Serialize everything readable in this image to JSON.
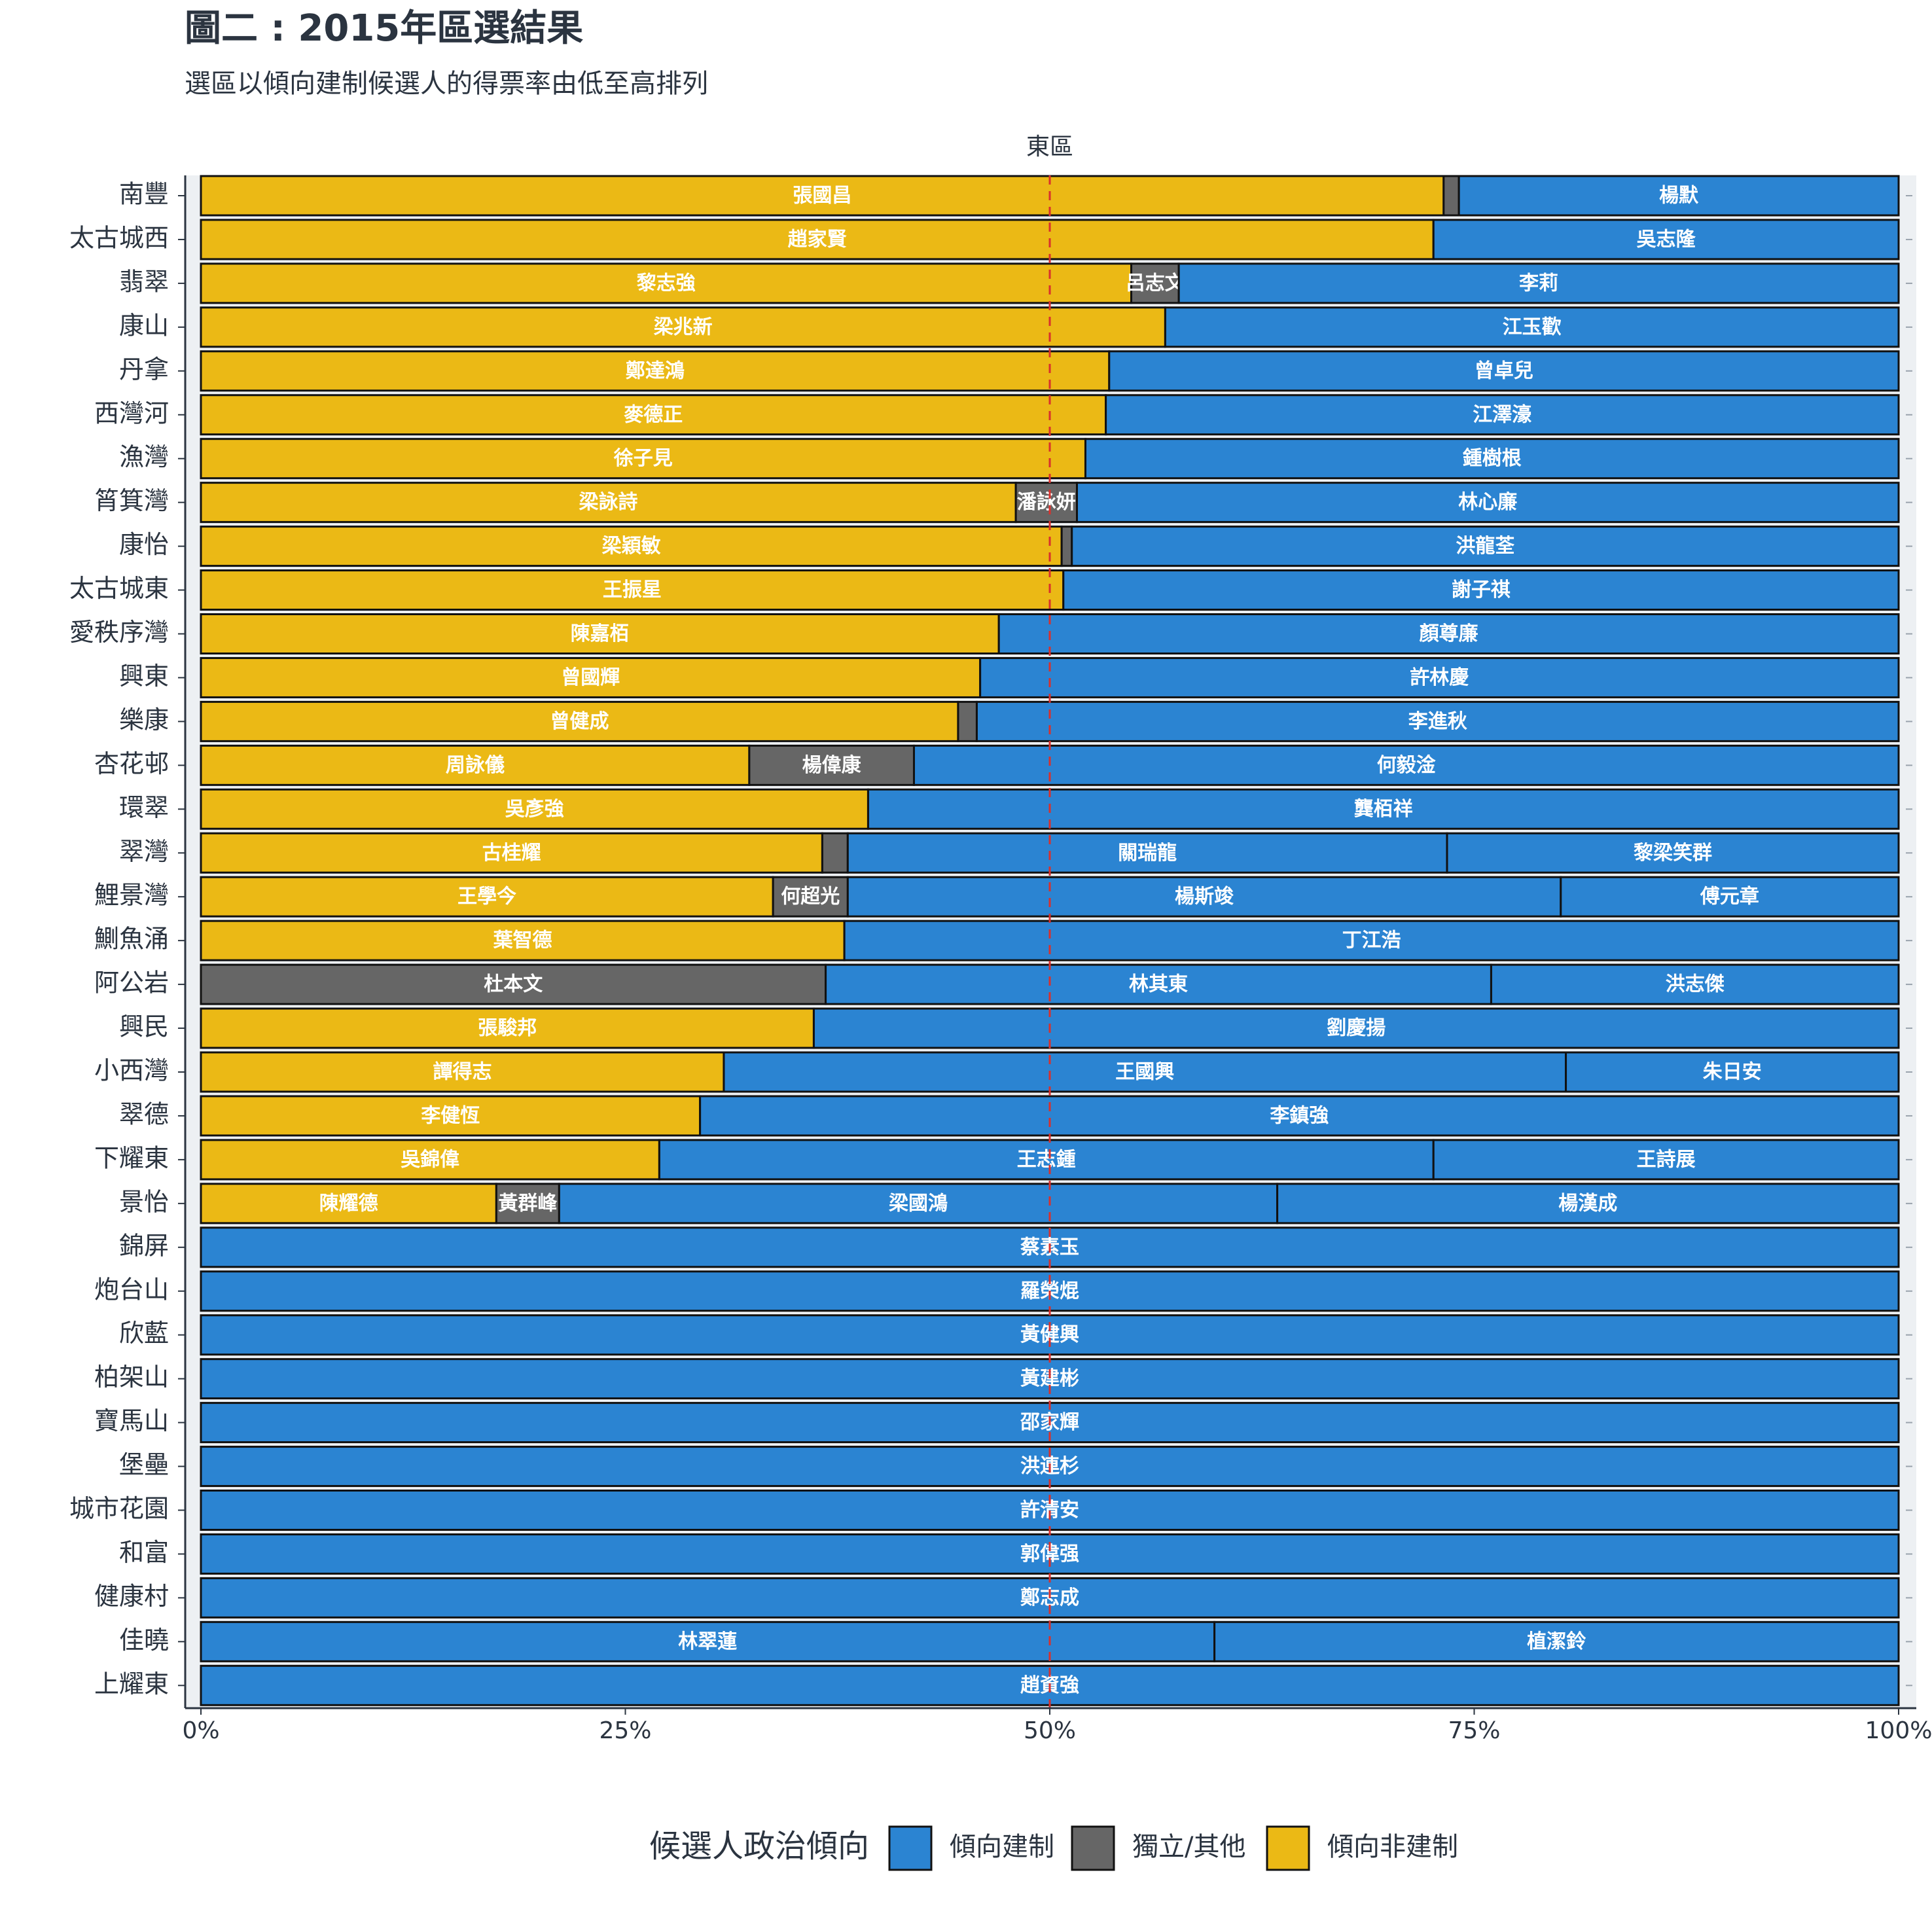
{
  "chart_data": {
    "type": "stacked-bar-horizontal",
    "title": "圖二 : 2015年區選結果",
    "subtitle": "選區以傾向建制候選人的得票率由低至高排列",
    "facet": "東區",
    "legend_title": "候選人政治傾向",
    "camps": [
      {
        "name": "傾向建制",
        "color": "#2b84d2"
      },
      {
        "name": "獨立/其他",
        "color": "#666666"
      },
      {
        "name": "傾向非建制",
        "color": "#ebb915"
      }
    ],
    "xlim": [
      0,
      100
    ],
    "xticks": [
      {
        "value": 0,
        "label": "0%"
      },
      {
        "value": 25,
        "label": "25%"
      },
      {
        "value": 50,
        "label": "50%"
      },
      {
        "value": 75,
        "label": "75%"
      },
      {
        "value": 100,
        "label": "100%"
      }
    ],
    "reference_line": 50,
    "rows": [
      {
        "district": "南豐",
        "segments": [
          {
            "candidate": "張國昌",
            "camp": 2,
            "value": 73.2
          },
          {
            "candidate": null,
            "camp": 1,
            "value": 0.9
          },
          {
            "candidate": "楊默",
            "camp": 0,
            "value": 25.9
          }
        ]
      },
      {
        "district": "太古城西",
        "segments": [
          {
            "candidate": "趙家賢",
            "camp": 2,
            "value": 72.6
          },
          {
            "candidate": "吳志隆",
            "camp": 0,
            "value": 27.4
          }
        ]
      },
      {
        "district": "翡翠",
        "segments": [
          {
            "candidate": "黎志強",
            "camp": 2,
            "value": 54.8
          },
          {
            "candidate": "呂志文",
            "camp": 1,
            "value": 2.8
          },
          {
            "candidate": "李莉",
            "camp": 0,
            "value": 42.4
          }
        ]
      },
      {
        "district": "康山",
        "segments": [
          {
            "candidate": "梁兆新",
            "camp": 2,
            "value": 56.8
          },
          {
            "candidate": "江玉歡",
            "camp": 0,
            "value": 43.2
          }
        ]
      },
      {
        "district": "丹拿",
        "segments": [
          {
            "candidate": "鄭達鴻",
            "camp": 2,
            "value": 53.5
          },
          {
            "candidate": "曾卓兒",
            "camp": 0,
            "value": 46.5
          }
        ]
      },
      {
        "district": "西灣河",
        "segments": [
          {
            "candidate": "麥德正",
            "camp": 2,
            "value": 53.3
          },
          {
            "candidate": "江澤濠",
            "camp": 0,
            "value": 46.7
          }
        ]
      },
      {
        "district": "漁灣",
        "segments": [
          {
            "candidate": "徐子見",
            "camp": 2,
            "value": 52.1
          },
          {
            "candidate": "鍾樹根",
            "camp": 0,
            "value": 47.9
          }
        ]
      },
      {
        "district": "筲箕灣",
        "segments": [
          {
            "candidate": "梁詠詩",
            "camp": 2,
            "value": 48.0
          },
          {
            "candidate": "潘詠妍",
            "camp": 1,
            "value": 3.6
          },
          {
            "candidate": "林心廉",
            "camp": 0,
            "value": 48.4
          }
        ]
      },
      {
        "district": "康怡",
        "segments": [
          {
            "candidate": "梁穎敏",
            "camp": 2,
            "value": 50.7
          },
          {
            "candidate": null,
            "camp": 1,
            "value": 0.6
          },
          {
            "candidate": "洪龍荃",
            "camp": 0,
            "value": 48.7
          }
        ]
      },
      {
        "district": "太古城東",
        "segments": [
          {
            "candidate": "王振星",
            "camp": 2,
            "value": 50.8
          },
          {
            "candidate": "謝子祺",
            "camp": 0,
            "value": 49.2
          }
        ]
      },
      {
        "district": "愛秩序灣",
        "segments": [
          {
            "candidate": "陳嘉栢",
            "camp": 2,
            "value": 47.0
          },
          {
            "candidate": "顏尊廉",
            "camp": 0,
            "value": 53.0
          }
        ]
      },
      {
        "district": "興東",
        "segments": [
          {
            "candidate": "曾國輝",
            "camp": 2,
            "value": 45.9
          },
          {
            "candidate": "許林慶",
            "camp": 0,
            "value": 54.1
          }
        ]
      },
      {
        "district": "樂康",
        "segments": [
          {
            "candidate": "曾健成",
            "camp": 2,
            "value": 44.6
          },
          {
            "candidate": null,
            "camp": 1,
            "value": 1.1
          },
          {
            "candidate": "李進秋",
            "camp": 0,
            "value": 54.3
          }
        ]
      },
      {
        "district": "杏花邨",
        "segments": [
          {
            "candidate": "周詠儀",
            "camp": 2,
            "value": 32.3
          },
          {
            "candidate": "楊偉康",
            "camp": 1,
            "value": 9.7
          },
          {
            "candidate": "何毅淦",
            "camp": 0,
            "value": 58.0
          }
        ]
      },
      {
        "district": "環翠",
        "segments": [
          {
            "candidate": "吳彥強",
            "camp": 2,
            "value": 39.3
          },
          {
            "candidate": "龔栢祥",
            "camp": 0,
            "value": 60.7
          }
        ]
      },
      {
        "district": "翠灣",
        "segments": [
          {
            "candidate": "古桂耀",
            "camp": 2,
            "value": 36.6
          },
          {
            "candidate": null,
            "camp": 1,
            "value": 1.5
          },
          {
            "candidate": "關瑞龍",
            "camp": 0,
            "value": 35.3
          },
          {
            "candidate": "黎梁笑群",
            "camp": 0,
            "value": 26.6
          }
        ]
      },
      {
        "district": "鯉景灣",
        "segments": [
          {
            "candidate": "王學今",
            "camp": 2,
            "value": 33.7
          },
          {
            "candidate": "何超光",
            "camp": 1,
            "value": 4.4
          },
          {
            "candidate": "楊斯竣",
            "camp": 0,
            "value": 42.0
          },
          {
            "candidate": "傅元章",
            "camp": 0,
            "value": 19.9
          }
        ]
      },
      {
        "district": "鰂魚涌",
        "segments": [
          {
            "candidate": "葉智德",
            "camp": 2,
            "value": 37.9
          },
          {
            "candidate": "丁江浩",
            "camp": 0,
            "value": 62.1
          }
        ]
      },
      {
        "district": "阿公岩",
        "segments": [
          {
            "candidate": "杜本文",
            "camp": 1,
            "value": 36.8
          },
          {
            "candidate": "林其東",
            "camp": 0,
            "value": 39.2
          },
          {
            "candidate": "洪志傑",
            "camp": 0,
            "value": 24.0
          }
        ]
      },
      {
        "district": "興民",
        "segments": [
          {
            "candidate": "張駿邦",
            "camp": 2,
            "value": 36.1
          },
          {
            "candidate": "劉慶揚",
            "camp": 0,
            "value": 63.9
          }
        ]
      },
      {
        "district": "小西灣",
        "segments": [
          {
            "candidate": "譚得志",
            "camp": 2,
            "value": 30.8
          },
          {
            "candidate": "王國興",
            "camp": 0,
            "value": 49.6
          },
          {
            "candidate": "朱日安",
            "camp": 0,
            "value": 19.6
          }
        ]
      },
      {
        "district": "翠德",
        "segments": [
          {
            "candidate": "李健恆",
            "camp": 2,
            "value": 29.4
          },
          {
            "candidate": "李鎮強",
            "camp": 0,
            "value": 70.6
          }
        ]
      },
      {
        "district": "下耀東",
        "segments": [
          {
            "candidate": "吳錦偉",
            "camp": 2,
            "value": 27.0
          },
          {
            "candidate": "王志鍾",
            "camp": 0,
            "value": 45.6
          },
          {
            "candidate": "王詩展",
            "camp": 0,
            "value": 27.4
          }
        ]
      },
      {
        "district": "景怡",
        "segments": [
          {
            "candidate": "陳耀德",
            "camp": 2,
            "value": 17.4
          },
          {
            "candidate": "黃群峰",
            "camp": 1,
            "value": 3.7
          },
          {
            "candidate": "梁國鴻",
            "camp": 0,
            "value": 42.3
          },
          {
            "candidate": "楊漢成",
            "camp": 0,
            "value": 36.6
          }
        ]
      },
      {
        "district": "錦屏",
        "segments": [
          {
            "candidate": "蔡素玉",
            "camp": 0,
            "value": 100
          }
        ]
      },
      {
        "district": "炮台山",
        "segments": [
          {
            "candidate": "羅榮焜",
            "camp": 0,
            "value": 100
          }
        ]
      },
      {
        "district": "欣藍",
        "segments": [
          {
            "candidate": "黃健興",
            "camp": 0,
            "value": 100
          }
        ]
      },
      {
        "district": "柏架山",
        "segments": [
          {
            "candidate": "黃建彬",
            "camp": 0,
            "value": 100
          }
        ]
      },
      {
        "district": "寶馬山",
        "segments": [
          {
            "candidate": "邵家輝",
            "camp": 0,
            "value": 100
          }
        ]
      },
      {
        "district": "堡壘",
        "segments": [
          {
            "candidate": "洪連杉",
            "camp": 0,
            "value": 100
          }
        ]
      },
      {
        "district": "城市花園",
        "segments": [
          {
            "candidate": "許清安",
            "camp": 0,
            "value": 100
          }
        ]
      },
      {
        "district": "和富",
        "segments": [
          {
            "candidate": "郭偉强",
            "camp": 0,
            "value": 100
          }
        ]
      },
      {
        "district": "健康村",
        "segments": [
          {
            "candidate": "鄭志成",
            "camp": 0,
            "value": 100
          }
        ]
      },
      {
        "district": "佳曉",
        "segments": [
          {
            "candidate": "林翠蓮",
            "camp": 0,
            "value": 59.7
          },
          {
            "candidate": "植潔鈴",
            "camp": 0,
            "value": 40.3
          }
        ]
      },
      {
        "district": "上耀東",
        "segments": [
          {
            "candidate": "趙資強",
            "camp": 0,
            "value": 100
          }
        ]
      }
    ]
  }
}
